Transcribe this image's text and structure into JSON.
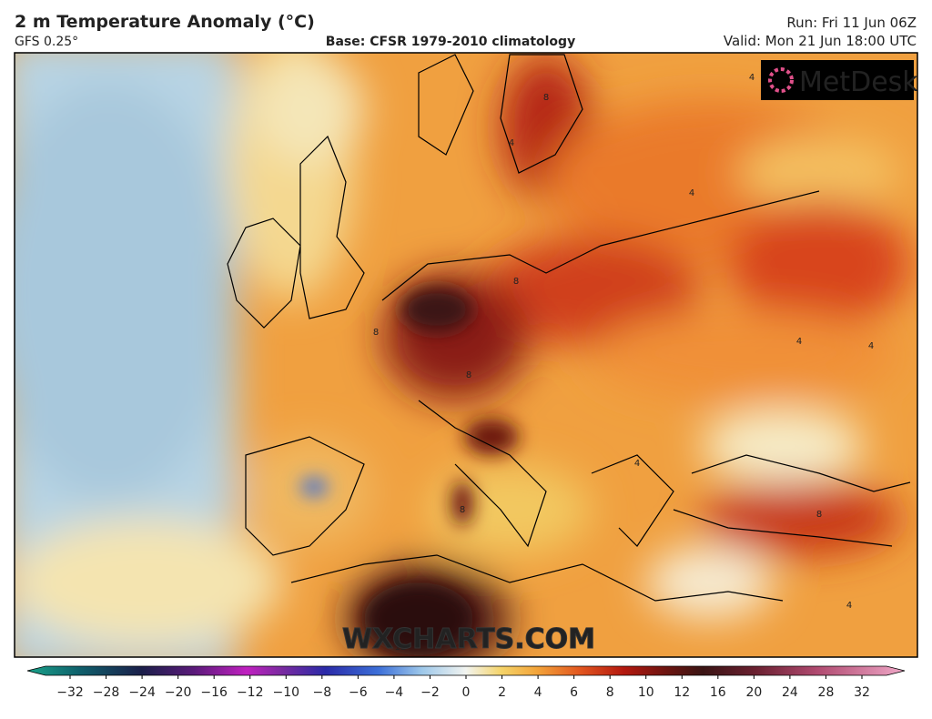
{
  "header": {
    "title": "2 m Temperature Anomaly (°C)",
    "model": "GFS 0.25°",
    "base": "Base: CFSR 1979-2010 climatology",
    "run": "Run: Fri 11 Jun 06Z",
    "valid": "Valid: Mon 21 Jun 18:00 UTC"
  },
  "map": {
    "logo": "MetDesk",
    "watermark": "WXCHARTS.COM",
    "contour_labels": [
      "8",
      "4",
      "4",
      "8",
      "8",
      "8",
      "4",
      "4",
      "4",
      "4",
      "8",
      "8",
      "4",
      "12"
    ]
  },
  "colorbar": {
    "labels": [
      "−32",
      "−28",
      "−24",
      "−20",
      "−16",
      "−12",
      "−10",
      "−8",
      "−6",
      "−4",
      "−2",
      "0",
      "2",
      "4",
      "6",
      "8",
      "10",
      "12",
      "16",
      "20",
      "24",
      "28",
      "32"
    ]
  }
}
